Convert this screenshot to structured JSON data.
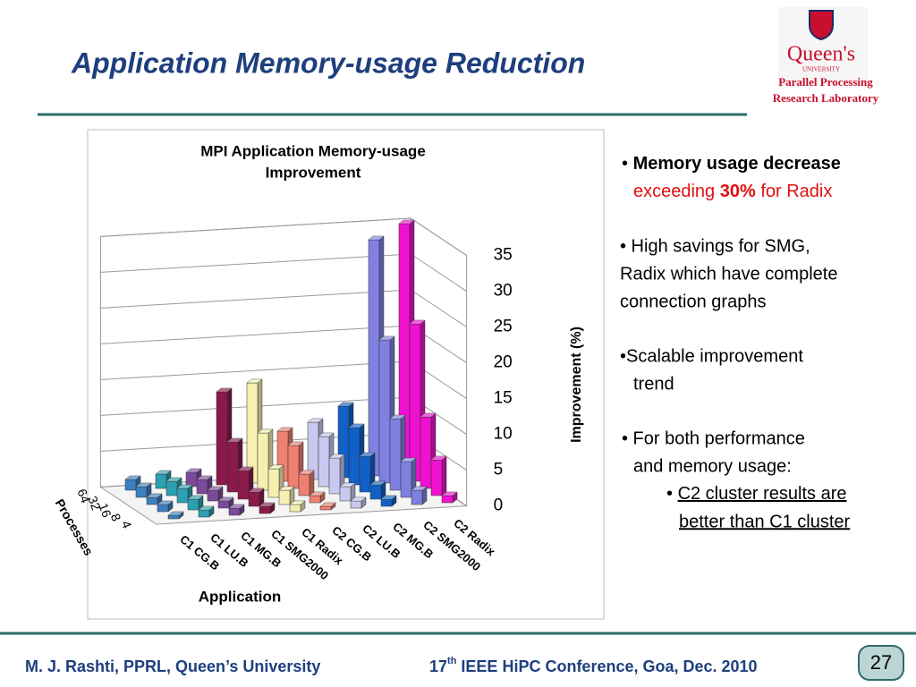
{
  "slide": {
    "title": "Application Memory-usage Reduction",
    "logo": {
      "name": "Queen's",
      "sub": "UNIVERSITY",
      "lab": [
        "Parallel Processing",
        "Research Laboratory"
      ]
    },
    "bullets": {
      "b1": {
        "dot": "• ",
        "bold": "Memory usage decrease",
        "l2a": "exceeding ",
        "l2b": "30%",
        "l2c": " for Radix"
      },
      "b2": [
        "• High savings for SMG,",
        "Radix which have complete",
        "connection graphs"
      ],
      "b3": [
        "•Scalable improvement",
        "trend"
      ],
      "b4": [
        "• For both performance",
        "and memory usage:"
      ],
      "sub": {
        "dot": "• ",
        "lines": [
          "C2 cluster results are",
          "better than C1 cluster"
        ]
      }
    },
    "footer": {
      "author": "M. J. Rashti, PPRL, Queen’s University",
      "conf_num": "17",
      "conf_sup": "th",
      "conf_rest": " IEEE HiPC Conference, Goa, Dec. 2010",
      "page": 27
    }
  },
  "chart_data": {
    "type": "bar",
    "title": [
      "MPI Application  Memory-usage",
      "Improvement"
    ],
    "xlabel": "Application",
    "ylabel": "Improvement  (%)",
    "depth_label": "Processes",
    "categories": [
      "C1 CG.B",
      "C1 LU.B",
      "C1 MG.B",
      "C1 SMG2000",
      "C1 Radix",
      "C2 CG.B",
      "C2 LU.B",
      "C2 MG.B",
      "C2 SMG2000",
      "C2 Radix"
    ],
    "colors": [
      "#3a7fc0",
      "#2aa0b0",
      "#7b4a9b",
      "#8b1a4a",
      "#f5f0b0",
      "#f08070",
      "#c8c8f0",
      "#1060c8",
      "#8080e0",
      "#f010d0"
    ],
    "series": [
      {
        "name": "64",
        "values": [
          1.5,
          2,
          2,
          13,
          14,
          7,
          8,
          10,
          33,
          35
        ]
      },
      {
        "name": "32",
        "values": [
          1.5,
          2,
          2,
          7,
          8,
          6,
          7,
          8,
          20,
          22
        ]
      },
      {
        "name": "16",
        "values": [
          1,
          2,
          1.5,
          4,
          4,
          3,
          5,
          5,
          10,
          10
        ]
      },
      {
        "name": "8",
        "values": [
          1,
          1.5,
          1,
          2,
          2,
          1,
          2,
          2,
          5,
          5
        ]
      },
      {
        "name": "4",
        "values": [
          0.5,
          1,
          1,
          1,
          1,
          0.5,
          1,
          1,
          2,
          1
        ]
      }
    ],
    "ylim": [
      0,
      35
    ],
    "yticks": [
      0,
      5,
      10,
      15,
      20,
      25,
      30,
      35
    ],
    "grid": true
  }
}
